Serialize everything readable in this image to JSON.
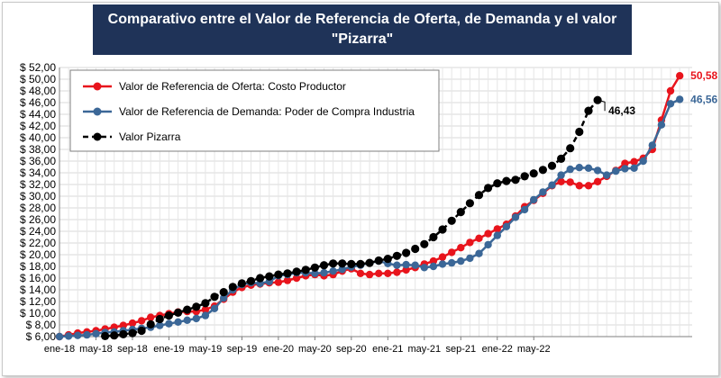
{
  "chart_data": {
    "type": "line",
    "title_lines": [
      "Comparativo entre el Valor de Referencia de Oferta, de Demanda y el valor",
      "\"Pizarra\""
    ],
    "ylim": [
      6,
      52
    ],
    "y_ticks": [
      "$ 6,00",
      "$ 8,00",
      "$ 10,00",
      "$ 12,00",
      "$ 14,00",
      "$ 16,00",
      "$ 18,00",
      "$ 20,00",
      "$ 22,00",
      "$ 24,00",
      "$ 26,00",
      "$ 28,00",
      "$ 30,00",
      "$ 32,00",
      "$ 34,00",
      "$ 36,00",
      "$ 38,00",
      "$ 40,00",
      "$ 42,00",
      "$ 44,00",
      "$ 46,00",
      "$ 48,00",
      "$ 50,00",
      "$ 52,00"
    ],
    "x_ticks": [
      "ene-18",
      "may-18",
      "sep-18",
      "ene-19",
      "may-19",
      "sep-19",
      "ene-20",
      "may-20",
      "sep-20",
      "ene-21",
      "may-21",
      "sep-21",
      "ene-22",
      "may-22"
    ],
    "grid": true,
    "legend_position": "top-left",
    "series": [
      {
        "name": "Valor de Referencia de Oferta: Costo Productor",
        "color": "#e8141c",
        "dashed": false,
        "end_label": "50,58",
        "start_index": 0,
        "values": [
          6.0,
          6.3,
          6.6,
          6.8,
          7.0,
          7.3,
          7.6,
          7.9,
          8.3,
          8.7,
          9.3,
          9.6,
          9.9,
          10.2,
          10.3,
          10.3,
          10.6,
          11.2,
          12.4,
          13.6,
          14.4,
          14.8,
          15.0,
          15.2,
          15.3,
          15.6,
          16.0,
          16.4,
          16.6,
          16.4,
          16.6,
          17.2,
          17.6,
          16.8,
          16.6,
          16.8,
          16.8,
          17.0,
          17.4,
          17.8,
          18.4,
          18.9,
          19.6,
          20.4,
          21.2,
          22.1,
          22.8,
          23.6,
          24.4,
          25.2,
          26.6,
          28.2,
          29.3,
          30.5,
          31.8,
          32.5,
          32.4,
          31.8,
          31.8,
          32.5,
          33.4,
          34.4,
          35.6,
          35.9,
          36.5,
          38.0,
          43.0,
          48.0,
          50.58
        ]
      },
      {
        "name": "Valor de Referencia de Demanda: Poder de Compra Industria",
        "color": "#3b6797",
        "dashed": false,
        "end_label": "46,56",
        "start_index": 0,
        "values": [
          6.0,
          6.1,
          6.2,
          6.3,
          6.5,
          6.7,
          6.8,
          7.0,
          7.2,
          7.4,
          7.6,
          7.9,
          8.2,
          8.5,
          8.8,
          9.1,
          9.6,
          10.8,
          12.6,
          14.0,
          14.9,
          15.2,
          15.1,
          15.4,
          16.4,
          16.6,
          16.9,
          16.9,
          16.8,
          16.9,
          17.2,
          17.5,
          17.9,
          18.2,
          18.6,
          18.9,
          18.5,
          18.2,
          18.3,
          18.2,
          17.8,
          18.0,
          18.4,
          18.6,
          18.9,
          19.4,
          20.2,
          21.7,
          23.3,
          24.8,
          26.4,
          27.7,
          29.4,
          30.7,
          31.9,
          33.6,
          34.6,
          34.9,
          34.8,
          34.4,
          33.6,
          34.3,
          34.7,
          34.8,
          36.0,
          38.7,
          42.2,
          45.8,
          46.56
        ]
      },
      {
        "name": "Valor Pizarra",
        "color": "#000000",
        "dashed": true,
        "end_label": "46,43",
        "start_index": 5,
        "values": [
          6.1,
          6.2,
          6.4,
          6.6,
          7.0,
          8.1,
          9.0,
          9.6,
          10.1,
          10.6,
          11.1,
          11.7,
          12.8,
          13.6,
          14.5,
          15.1,
          15.5,
          16.0,
          16.3,
          16.6,
          16.8,
          17.1,
          17.4,
          17.8,
          18.2,
          18.5,
          18.5,
          18.4,
          18.4,
          18.6,
          19.0,
          19.3,
          19.8,
          20.3,
          21.0,
          21.8,
          23.0,
          24.3,
          25.8,
          27.3,
          28.8,
          30.2,
          31.4,
          32.2,
          32.6,
          32.8,
          33.4,
          33.9,
          34.5,
          35.2,
          36.4,
          38.2,
          41.0,
          44.6,
          46.43
        ]
      }
    ]
  }
}
